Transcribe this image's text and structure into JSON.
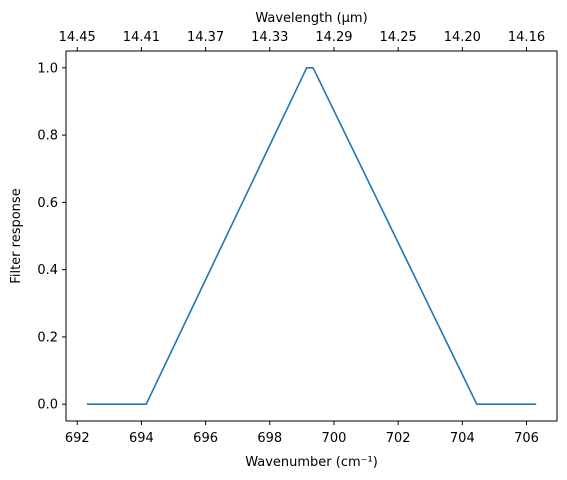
{
  "chart_data": {
    "type": "line",
    "title": "",
    "xlabel": "Wavenumber (cm⁻¹)",
    "ylabel": "Filter response",
    "top_xlabel": "Wavelength (μm)",
    "xlim": [
      691.65,
      706.95
    ],
    "ylim": [
      -0.05,
      1.05
    ],
    "grid": false,
    "legend": "none",
    "x_ticks": [
      692,
      694,
      696,
      698,
      700,
      702,
      704,
      706
    ],
    "y_ticks": [
      0.0,
      0.2,
      0.4,
      0.6,
      0.8,
      1.0
    ],
    "y_tick_labels": [
      "0.0",
      "0.2",
      "0.4",
      "0.6",
      "0.8",
      "1.0"
    ],
    "top_ticks": [
      "14.45",
      "14.41",
      "14.37",
      "14.33",
      "14.29",
      "14.25",
      "14.20",
      "14.16"
    ],
    "series": [
      {
        "color": "#1f77b4",
        "x": [
          692.3,
          694.15,
          699.15,
          699.35,
          704.45,
          706.3
        ],
        "y": [
          0.0,
          0.0,
          1.0,
          1.0,
          0.0,
          0.0
        ]
      }
    ]
  }
}
